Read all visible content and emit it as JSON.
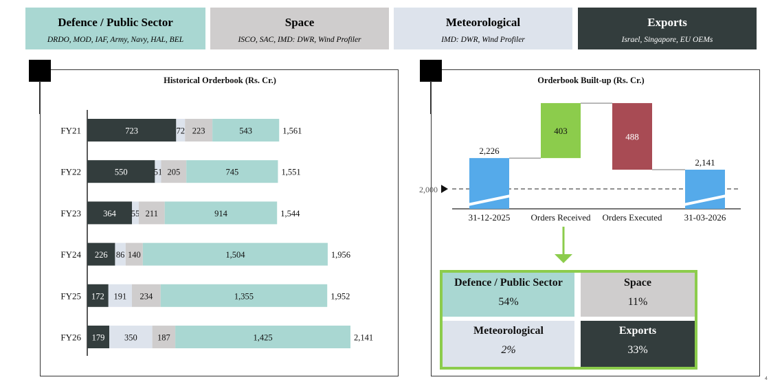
{
  "segments": [
    {
      "key": "defence",
      "title": "Defence / Public Sector",
      "sub": "DRDO, MOD, IAF, Army, Navy, HAL, BEL",
      "bg": "#a9d7d2",
      "fg": "#000000"
    },
    {
      "key": "space",
      "title": "Space",
      "sub": "ISCO, SAC, IMD: DWR, Wind Profiler",
      "bg": "#cfcdcd",
      "fg": "#000000"
    },
    {
      "key": "met",
      "title": "Meteorological",
      "sub": "IMD: DWR, Wind Profiler",
      "bg": "#dde3ec",
      "fg": "#000000"
    },
    {
      "key": "exports",
      "title": "Exports",
      "sub": "Israel, Singapore, EU OEMs",
      "bg": "#333d3d",
      "fg": "#ffffff"
    }
  ],
  "colors": {
    "exports": "#333d3d",
    "met": "#dde3ec",
    "space": "#cfcdcd",
    "defence": "#a9d7d2",
    "wf_blue": "#55aaea",
    "wf_green": "#8ccc4c",
    "wf_red": "#a84b54",
    "mix_border": "#8ccc4c"
  },
  "historical": {
    "title": "Historical Orderbook (Rs. Cr.)",
    "chart_data": {
      "type": "bar",
      "orientation": "horizontal",
      "stacked": true,
      "categories": [
        "FY21",
        "FY22",
        "FY23",
        "FY24",
        "FY25",
        "FY26"
      ],
      "series": [
        {
          "key": "exports",
          "values": [
            723,
            550,
            364,
            226,
            172,
            179
          ]
        },
        {
          "key": "met",
          "values": [
            72,
            51,
            55,
            86,
            191,
            350
          ]
        },
        {
          "key": "space",
          "values": [
            223,
            205,
            211,
            140,
            234,
            187
          ]
        },
        {
          "key": "defence",
          "values": [
            543,
            745,
            914,
            1504,
            1355,
            1425
          ]
        }
      ],
      "segment_labels": [
        [
          "723",
          "72",
          "223",
          "543"
        ],
        [
          "550",
          "51",
          "205",
          "745"
        ],
        [
          "364",
          "55",
          "211",
          "914"
        ],
        [
          "226",
          "86",
          "140",
          "1,504"
        ],
        [
          "172",
          "191",
          "234",
          "1,355"
        ],
        [
          "179",
          "350",
          "187",
          "1,425"
        ]
      ],
      "totals": [
        1561,
        1551,
        1544,
        1956,
        1952,
        2141
      ],
      "total_labels": [
        "1,561",
        "1,551",
        "1,544",
        "1,956",
        "1,952",
        "2,141"
      ],
      "xlim": [
        0,
        2141
      ]
    }
  },
  "buildup": {
    "title": "Orderbook Built-up (Rs. Cr.)",
    "chart_data": {
      "type": "bar",
      "subtype": "waterfall",
      "categories": [
        "31-12-2025",
        "Orders Received",
        "Orders Executed",
        "31-03-2026"
      ],
      "values": [
        2226,
        403,
        -488,
        2141
      ],
      "value_labels": [
        "2,226",
        "403",
        "488",
        "2,141"
      ],
      "baseline": 2000,
      "baseline_label": "2,000",
      "ylim": [
        1850,
        2700
      ]
    }
  },
  "mix": {
    "cells": [
      {
        "key": "defence",
        "label": "Defence / Public Sector",
        "value": "54%"
      },
      {
        "key": "space",
        "label": "Space",
        "value": "11%"
      },
      {
        "key": "met",
        "label": "Meteorological",
        "value": "2%"
      },
      {
        "key": "exports",
        "label": "Exports",
        "value": "33%"
      }
    ]
  },
  "page_marker": "4"
}
